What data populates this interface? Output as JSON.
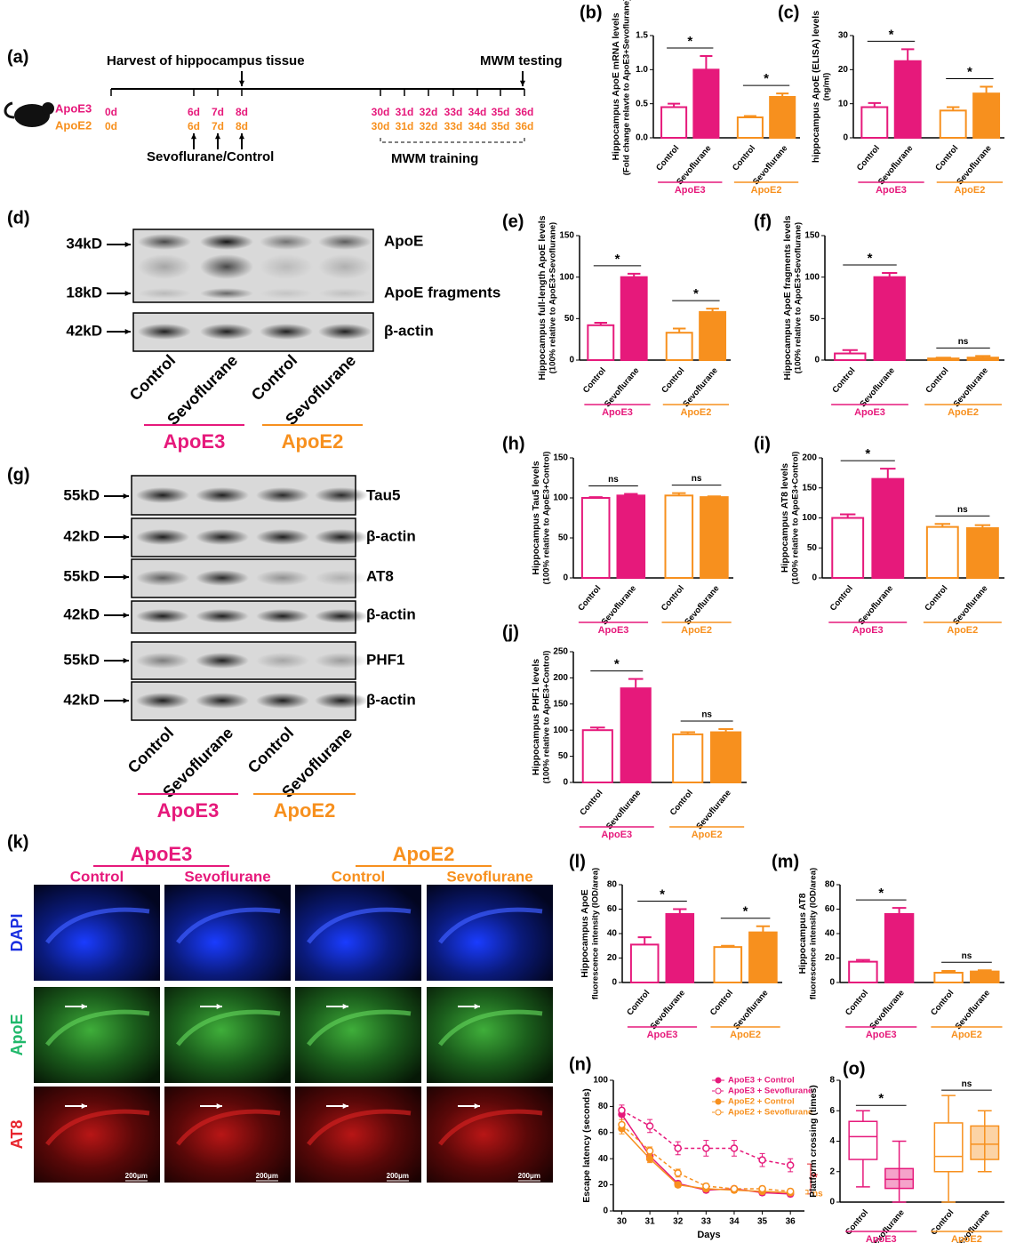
{
  "timeline": {
    "label": "(a)",
    "harvest": "Harvest of hippocampus tissue",
    "testing": "MWM testing",
    "treatment": "Sevoflurane/Control",
    "training": "MWM training",
    "groups": [
      "ApoE3",
      "ApoE2"
    ],
    "days_apoe3": [
      "0d",
      "6d",
      "7d",
      "8d",
      "30d",
      "31d",
      "32d",
      "33d",
      "34d",
      "35d",
      "36d"
    ],
    "days_apoe2": [
      "0d",
      "6d",
      "7d",
      "8d",
      "30d",
      "31d",
      "32d",
      "33d",
      "34d",
      "35d",
      "36d"
    ]
  },
  "blot_d": {
    "label": "(d)",
    "markers": [
      "34kD",
      "18kD",
      "42kD"
    ],
    "bands": [
      "ApoE",
      "ApoE fragments",
      "β-actin"
    ],
    "lanes": [
      "Control",
      "Sevoflurane",
      "Control",
      "Sevoflurane"
    ],
    "groups": [
      "ApoE3",
      "ApoE2"
    ]
  },
  "blot_g": {
    "label": "(g)",
    "markers": [
      "55kD",
      "42kD",
      "55kD",
      "42kD",
      "55kD",
      "42kD"
    ],
    "bands": [
      "Tau5",
      "β-actin",
      "AT8",
      "β-actin",
      "PHF1",
      "β-actin"
    ],
    "lanes": [
      "Control",
      "Sevoflurane",
      "Control",
      "Sevoflurane"
    ],
    "groups": [
      "ApoE3",
      "ApoE2"
    ]
  },
  "micrographs": {
    "label": "(k)",
    "groups": [
      "ApoE3",
      "ApoE2"
    ],
    "columns": [
      "Control",
      "Sevoflurane",
      "Control",
      "Sevoflurane"
    ],
    "rows": [
      "DAPI",
      "ApoE",
      "AT8"
    ],
    "scale": "200μm"
  },
  "chart_data": [
    {
      "type": "bar",
      "label": "(b)",
      "ylabel": [
        "Hippocampus ApoE mRNA levels",
        "(Fold change relavte to ApoE3+Sevoflurane)"
      ],
      "categories": [
        "Control",
        "Sevoflurane",
        "Control",
        "Sevoflurane"
      ],
      "groups": [
        "ApoE3",
        "ApoE2"
      ],
      "colors": [
        "#e6197b",
        "#e6197b",
        "#f7901e",
        "#f7901e"
      ],
      "filled": [
        false,
        true,
        false,
        true
      ],
      "values": [
        0.45,
        1.0,
        0.3,
        0.6
      ],
      "errors": [
        0.05,
        0.2,
        0.02,
        0.05
      ],
      "significance": [
        "*",
        "*"
      ],
      "ylim": [
        0,
        1.5
      ],
      "yticks": [
        {
          "value": 0,
          "label": "0.0"
        },
        0.5,
        {
          "value": 1,
          "label": "1.0"
        },
        1.5
      ]
    },
    {
      "type": "bar",
      "label": "(c)",
      "ylabel": [
        "hippocampus ApoE (ELISA) levels",
        "(ng/ml)"
      ],
      "categories": [
        "Control",
        "Sevoflurane",
        "Control",
        "Sevoflurane"
      ],
      "groups": [
        "ApoE3",
        "ApoE2"
      ],
      "colors": [
        "#e6197b",
        "#e6197b",
        "#f7901e",
        "#f7901e"
      ],
      "filled": [
        false,
        true,
        false,
        true
      ],
      "values": [
        9,
        22.5,
        8,
        13
      ],
      "errors": [
        1.2,
        3.5,
        1,
        2
      ],
      "significance": [
        "*",
        "*"
      ],
      "ylim": [
        0,
        30
      ],
      "yticks": [
        0,
        10,
        20,
        30
      ]
    },
    {
      "type": "bar",
      "label": "(e)",
      "ylabel": [
        "Hippocampus full-length ApoE levels",
        "(100% relative to ApoE3+Sevoflurane)"
      ],
      "categories": [
        "Control",
        "Sevoflurane",
        "Control",
        "Sevoflurane"
      ],
      "groups": [
        "ApoE3",
        "ApoE2"
      ],
      "colors": [
        "#e6197b",
        "#e6197b",
        "#f7901e",
        "#f7901e"
      ],
      "filled": [
        false,
        true,
        false,
        true
      ],
      "values": [
        42,
        100,
        33,
        58
      ],
      "errors": [
        3,
        4,
        5,
        4
      ],
      "significance": [
        "*",
        "*"
      ],
      "ylim": [
        0,
        150
      ],
      "yticks": [
        0,
        50,
        100,
        150
      ]
    },
    {
      "type": "bar",
      "label": "(f)",
      "ylabel": [
        "Hippocampus ApoE fragments levels",
        "(100% relative to ApoE3+Sevoflurane)"
      ],
      "categories": [
        "Control",
        "Sevoflurane",
        "Control",
        "Sevoflurane"
      ],
      "groups": [
        "ApoE3",
        "ApoE2"
      ],
      "colors": [
        "#e6197b",
        "#e6197b",
        "#f7901e",
        "#f7901e"
      ],
      "filled": [
        false,
        true,
        false,
        true
      ],
      "values": [
        8,
        100,
        2,
        3
      ],
      "errors": [
        4,
        5,
        1,
        2
      ],
      "significance": [
        "*",
        "ns"
      ],
      "ylim": [
        0,
        150
      ],
      "yticks": [
        0,
        50,
        100,
        150
      ]
    },
    {
      "type": "bar",
      "label": "(h)",
      "ylabel": [
        "Hippocampus Tau5 levels",
        "(100% relative to ApoE3+Control)"
      ],
      "categories": [
        "Control",
        "Sevoflurane",
        "Control",
        "Sevoflurane"
      ],
      "groups": [
        "ApoE3",
        "ApoE2"
      ],
      "colors": [
        "#e6197b",
        "#e6197b",
        "#f7901e",
        "#f7901e"
      ],
      "filled": [
        false,
        true,
        false,
        true
      ],
      "values": [
        100,
        103,
        103,
        101
      ],
      "errors": [
        1,
        2,
        3,
        1
      ],
      "significance": [
        "ns",
        "ns"
      ],
      "ylim": [
        0,
        150
      ],
      "yticks": [
        0,
        50,
        100,
        150
      ]
    },
    {
      "type": "bar",
      "label": "(i)",
      "ylabel": [
        "Hippocampus AT8 levels",
        "(100% relative to ApoE3+Control)"
      ],
      "categories": [
        "Control",
        "Sevoflurane",
        "Control",
        "Sevoflurane"
      ],
      "groups": [
        "ApoE3",
        "ApoE2"
      ],
      "colors": [
        "#e6197b",
        "#e6197b",
        "#f7901e",
        "#f7901e"
      ],
      "filled": [
        false,
        true,
        false,
        true
      ],
      "values": [
        100,
        165,
        85,
        83
      ],
      "errors": [
        6,
        17,
        5,
        5
      ],
      "significance": [
        "*",
        "ns"
      ],
      "ylim": [
        0,
        200
      ],
      "yticks": [
        0,
        50,
        100,
        150,
        200
      ]
    },
    {
      "type": "bar",
      "label": "(j)",
      "ylabel": [
        "Hippocampus PHF1 levels",
        "(100% relative to ApoE3+Control)"
      ],
      "categories": [
        "Control",
        "Sevoflurane",
        "Control",
        "Sevoflurane"
      ],
      "groups": [
        "ApoE3",
        "ApoE2"
      ],
      "colors": [
        "#e6197b",
        "#e6197b",
        "#f7901e",
        "#f7901e"
      ],
      "filled": [
        false,
        true,
        false,
        true
      ],
      "values": [
        100,
        180,
        92,
        96
      ],
      "errors": [
        5,
        18,
        4,
        6
      ],
      "significance": [
        "*",
        "ns"
      ],
      "ylim": [
        0,
        250
      ],
      "yticks": [
        0,
        50,
        100,
        150,
        200,
        250
      ]
    },
    {
      "type": "bar",
      "label": "(l)",
      "ylabel": [
        "Hippocampus ApoE",
        "fluorescence intensity (IOD/area)"
      ],
      "categories": [
        "Control",
        "Sevoflurane",
        "Control",
        "Sevoflurane"
      ],
      "groups": [
        "ApoE3",
        "ApoE2"
      ],
      "colors": [
        "#e6197b",
        "#e6197b",
        "#f7901e",
        "#f7901e"
      ],
      "filled": [
        false,
        true,
        false,
        true
      ],
      "values": [
        31,
        56,
        29,
        41
      ],
      "errors": [
        6,
        4,
        1,
        5
      ],
      "significance": [
        "*",
        "*"
      ],
      "ylim": [
        0,
        80
      ],
      "yticks": [
        0,
        20,
        40,
        60,
        80
      ]
    },
    {
      "type": "bar",
      "label": "(m)",
      "ylabel": [
        "Hippocampus AT8",
        "fluorescence intensity (IOD/area)"
      ],
      "categories": [
        "Control",
        "Sevoflurane",
        "Control",
        "Sevoflurane"
      ],
      "groups": [
        "ApoE3",
        "ApoE2"
      ],
      "colors": [
        "#e6197b",
        "#e6197b",
        "#f7901e",
        "#f7901e"
      ],
      "filled": [
        false,
        true,
        false,
        true
      ],
      "values": [
        17,
        56,
        8,
        9
      ],
      "errors": [
        1.5,
        5,
        1.5,
        1
      ],
      "significance": [
        "*",
        "ns"
      ],
      "ylim": [
        0,
        80
      ],
      "yticks": [
        0,
        20,
        40,
        60,
        80
      ]
    },
    {
      "type": "line",
      "label": "(n)",
      "xlabel": "Days",
      "ylabel": [
        "Escape latency (seconds)"
      ],
      "x": [
        30,
        31,
        32,
        33,
        34,
        35,
        36
      ],
      "xlim": [
        29.7,
        36.5
      ],
      "xticks": [
        30,
        31,
        32,
        33,
        34,
        35,
        36
      ],
      "ylim": [
        0,
        100
      ],
      "yticks": [
        0,
        20,
        40,
        60,
        80,
        100
      ],
      "series": [
        {
          "name": "ApoE3 + Control",
          "color": "#e6197b",
          "dashed": false,
          "filled": true,
          "values": [
            74,
            42,
            21,
            16,
            17,
            14,
            13
          ],
          "errors": [
            4,
            4,
            2,
            2,
            2,
            2,
            2
          ]
        },
        {
          "name": "ApoE3 + Sevoflurane",
          "color": "#e6197b",
          "dashed": true,
          "filled": false,
          "values": [
            77,
            65,
            48,
            48,
            48,
            39,
            35
          ],
          "errors": [
            4,
            5,
            5,
            6,
            6,
            5,
            5
          ]
        },
        {
          "name": "ApoE2 + Control",
          "color": "#f7901e",
          "dashed": false,
          "filled": true,
          "values": [
            63,
            40,
            20,
            17,
            16,
            15,
            14
          ],
          "errors": [
            4,
            3,
            2,
            2,
            2,
            2,
            2
          ]
        },
        {
          "name": "ApoE2 + Sevoflurane",
          "color": "#f7901e",
          "dashed": true,
          "filled": false,
          "values": [
            66,
            46,
            29,
            19,
            17,
            17,
            15
          ],
          "errors": [
            4,
            3,
            3,
            2,
            2,
            2,
            2
          ]
        }
      ],
      "annotations": [
        {
          "text": "*",
          "color": "#e8262e"
        },
        {
          "text": "ns",
          "color": "#f7901e"
        }
      ]
    },
    {
      "type": "box",
      "label": "(o)",
      "ylabel": [
        "Platform crossing (times)"
      ],
      "categories": [
        "Control",
        "Sevoflurane",
        "Control",
        "Sevoflurane"
      ],
      "groups": [
        "ApoE3",
        "ApoE2"
      ],
      "colors": [
        "#e6197b",
        "#e6197b",
        "#f7901e",
        "#f7901e"
      ],
      "filled": [
        false,
        true,
        false,
        true
      ],
      "boxes": [
        {
          "min": 1,
          "q1": 2.8,
          "median": 4.3,
          "q3": 5.3,
          "max": 6
        },
        {
          "min": 0,
          "q1": 0.9,
          "median": 1.5,
          "q3": 2.2,
          "max": 4
        },
        {
          "min": 0,
          "q1": 2,
          "median": 3,
          "q3": 5.2,
          "max": 7
        },
        {
          "min": 2,
          "q1": 2.8,
          "median": 3.8,
          "q3": 5,
          "max": 6
        }
      ],
      "significance": [
        "*",
        "ns"
      ],
      "ylim": [
        0,
        8
      ],
      "yticks": [
        0,
        2,
        4,
        6,
        8
      ]
    }
  ]
}
